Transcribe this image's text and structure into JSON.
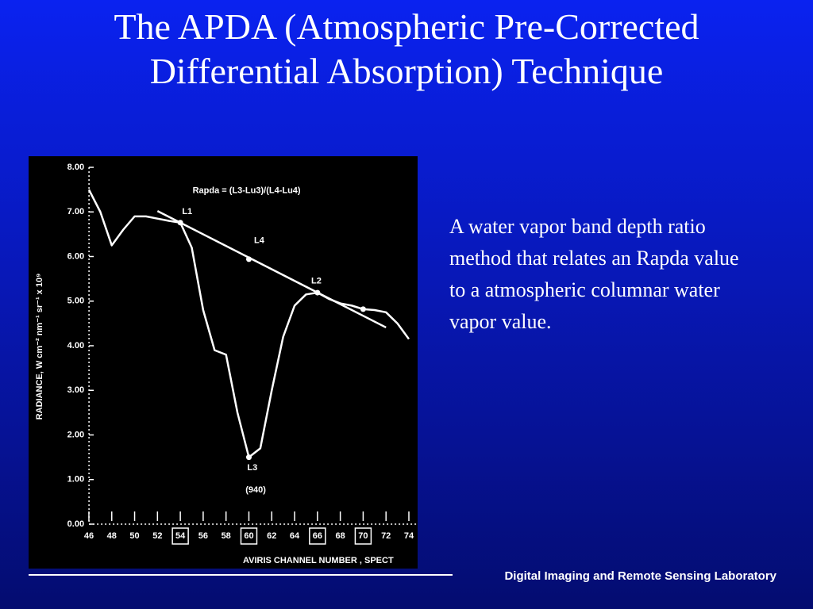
{
  "slide": {
    "title": "The APDA (Atmospheric Pre-Corrected Differential Absorption) Technique",
    "body": "A water vapor band depth ratio method  that relates an Rapda value to a atmospheric columnar water vapor value.",
    "footer": "Digital Imaging and Remote Sensing Laboratory"
  },
  "chart_data": {
    "type": "line",
    "x_label": "AVIRIS CHANNEL NUMBER , SPECT",
    "y_label": "RADIANCE, W cm⁻² nm⁻¹ sr⁻¹ x 10⁹",
    "xlim": [
      45.8,
      74.8
    ],
    "ylim": [
      0,
      8
    ],
    "xticks": [
      46,
      48,
      50,
      52,
      54,
      56,
      58,
      60,
      62,
      64,
      66,
      68,
      70,
      72,
      74
    ],
    "boxed_xticks": [
      54,
      60,
      66,
      70
    ],
    "yticks": [
      {
        "value": 0,
        "label": "0.00"
      },
      {
        "value": 1,
        "label": "1.00"
      },
      {
        "value": 2,
        "label": "2.00"
      },
      {
        "value": 3,
        "label": "3.00"
      },
      {
        "value": 4,
        "label": "4.00"
      },
      {
        "value": 5,
        "label": "5.00"
      },
      {
        "value": 6,
        "label": "6.00"
      },
      {
        "value": 7,
        "label": "7.00"
      },
      {
        "value": 8,
        "label": "8.00"
      }
    ],
    "x": [
      46,
      47,
      48,
      49,
      50,
      51,
      52,
      53,
      54,
      55,
      56,
      57,
      58,
      59,
      60,
      61,
      62,
      63,
      64,
      65,
      66,
      67,
      68,
      69,
      70,
      71,
      72,
      73,
      74
    ],
    "series": [
      {
        "color": "#ffffff",
        "values": [
          7.5,
          7.0,
          6.25,
          6.6,
          6.9,
          6.9,
          6.85,
          6.8,
          6.76,
          6.2,
          4.8,
          3.9,
          3.8,
          2.5,
          1.5,
          1.7,
          3.0,
          4.2,
          4.9,
          5.15,
          5.19,
          5.05,
          4.95,
          4.9,
          4.82,
          4.8,
          4.75,
          4.5,
          4.15
        ]
      },
      {
        "color": "#ffffff",
        "x": [
          52,
          72
        ],
        "values": [
          7.02,
          4.41
        ]
      }
    ],
    "markers": [
      {
        "x": 54,
        "y": 6.76
      },
      {
        "x": 60,
        "y": 5.94
      },
      {
        "x": 66,
        "y": 5.19
      },
      {
        "x": 60,
        "y": 1.5
      },
      {
        "x": 70,
        "y": 4.82
      }
    ],
    "annotations": [
      {
        "label": "Rapda = (L3-Lu3)/(L4-Lu4)",
        "x": 59.8,
        "y": 7.47
      },
      {
        "label": "L1",
        "x": 54.6,
        "y": 7.0
      },
      {
        "label": "L4",
        "x": 60.9,
        "y": 6.35
      },
      {
        "label": "L2",
        "x": 65.9,
        "y": 5.45
      },
      {
        "label": "L3",
        "x": 60.3,
        "y": 1.26
      },
      {
        "label": "(940)",
        "x": 60.6,
        "y": 0.76
      }
    ]
  }
}
